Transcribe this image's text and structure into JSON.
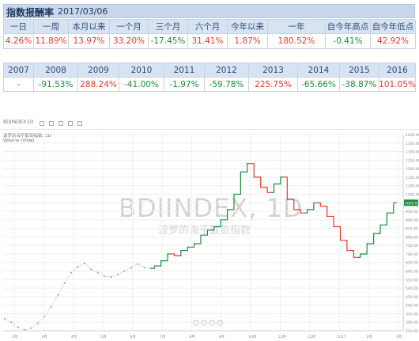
{
  "header": {
    "title": "指数报酬率",
    "date": "2017/03/06"
  },
  "returns_table": {
    "headers": [
      "一日",
      "一周",
      "本月以来",
      "一个月",
      "三个月",
      "六个月",
      "今年以来",
      "一年",
      "自今年高点",
      "自今年低点"
    ],
    "values": [
      "4.26%",
      "11.89%",
      "13.97%",
      "33.20%",
      "-17.45%",
      "31.41%",
      "1.87%",
      "180.52%",
      "-0.41%",
      "42.92%"
    ]
  },
  "yearly_table": {
    "headers": [
      "2007",
      "2008",
      "2009",
      "2010",
      "2011",
      "2012",
      "2013",
      "2014",
      "2015",
      "2016"
    ],
    "values": [
      "-",
      "-91.53%",
      "288.24%",
      "-41.00%",
      "-1.97%",
      "-59.78%",
      "225.75%",
      "-65.66%",
      "-38.87%",
      "101.05%"
    ]
  },
  "colors": {
    "positive": "#e23b2e",
    "negative": "#1d8a3d",
    "header_bg": "#d8e3f2"
  },
  "chart": {
    "symbol": "BDIINDEX",
    "interval": "1D",
    "legend_line1": "波罗的海干散货指数, 1D",
    "legend_line2": "Volume (Vlow)",
    "watermark_main": "BDIINDEX, 1D",
    "watermark_sub": "波罗的海干散货指数",
    "last_price_label": "1000.00",
    "price_ticks": [
      "1400.00",
      "1350.00",
      "1300.00",
      "1250.00",
      "1200.00",
      "1150.00",
      "1100.00",
      "1050.00",
      "1000.00",
      "950.00",
      "900.00",
      "850.00",
      "800.00",
      "750.00",
      "700.00",
      "650.00",
      "600.00",
      "550.00",
      "500.00",
      "450.00",
      "400.00",
      "350.00",
      "300.00",
      "250.00"
    ],
    "time_ticks": [
      "2月",
      "3月",
      "4月",
      "5月",
      "6月",
      "7月",
      "8月",
      "9月",
      "10月",
      "11月",
      "12月",
      "2017",
      "2月",
      "3月"
    ]
  },
  "chart_data": {
    "type": "line",
    "title": "",
    "ylim": [
      250,
      1400
    ],
    "series": [
      {
        "name": "",
        "values": [
          320,
          300,
          270,
          255,
          265,
          295,
          335,
          390,
          460,
          530,
          590,
          625,
          645,
          610,
          590,
          570,
          565,
          580,
          600,
          620,
          640,
          620,
          615,
          630,
          660,
          700,
          690,
          720,
          740,
          760,
          810,
          840,
          860,
          900,
          960,
          1050,
          1180,
          1230,
          1150,
          1090,
          1060,
          1110,
          1150,
          1020,
          960,
          940,
          960,
          1000,
          980,
          920,
          860,
          780,
          720,
          680,
          700,
          760,
          820,
          870,
          940,
          1000
        ]
      }
    ]
  }
}
